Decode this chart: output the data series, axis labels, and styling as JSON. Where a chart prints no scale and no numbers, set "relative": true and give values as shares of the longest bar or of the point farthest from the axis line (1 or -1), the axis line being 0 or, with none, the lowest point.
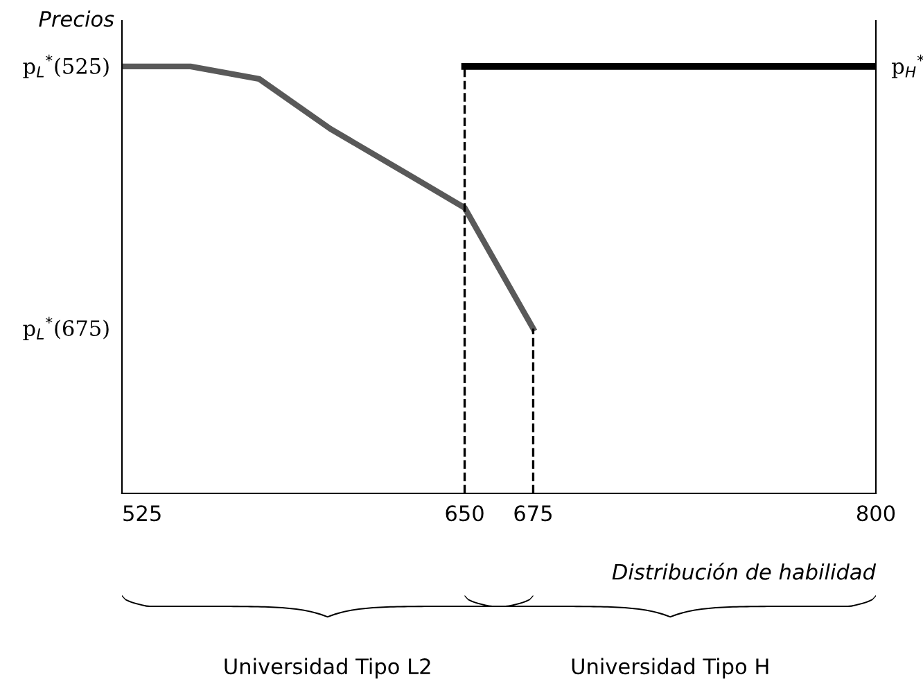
{
  "chart_data": {
    "type": "line",
    "relative": true,
    "ylabel": "Precios",
    "xlabel": "Distribución de habilidad",
    "xlim": [
      525,
      800
    ],
    "xticks": [
      525,
      650,
      675,
      800
    ],
    "tick_labels": "x",
    "grid": false,
    "legend": false,
    "marker": "none",
    "series": [
      {
        "x": [
          525,
          550,
          575,
          601,
          626,
          650,
          675
        ],
        "values": [
          1,
          1,
          0.971,
          0.854,
          0.76,
          0.669,
          0.386
        ],
        "color": "#595959",
        "line_style": "solid"
      },
      {
        "x": [
          650,
          800
        ],
        "values": [
          1,
          1
        ],
        "color": "#000000",
        "line_style": "solid"
      },
      {
        "x": [
          650,
          650
        ],
        "values": [
          0,
          1
        ],
        "color": "#000000",
        "line_style": "dashed"
      },
      {
        "x": [
          675,
          675
        ],
        "values": [
          0,
          0.386
        ],
        "color": "#000000",
        "line_style": "dashed"
      }
    ],
    "annotations": [
      "p$_{L}$$^{*}$(525)",
      "p$_{L}$$^{*}$(675)",
      "p$_{H}$$^{*}$",
      "Universidad Tipo L2",
      "Universidad Tipo H"
    ]
  }
}
